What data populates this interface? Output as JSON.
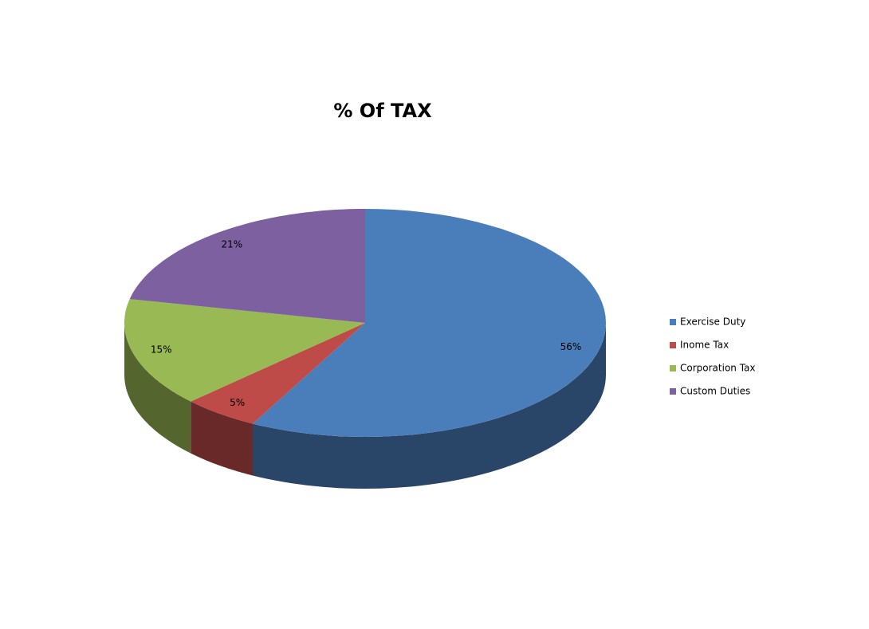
{
  "chart_data": {
    "type": "pie",
    "title": "% Of TAX",
    "categories": [
      "Exercise Duty",
      "Inome Tax",
      "Corporation Tax",
      "Custom Duties"
    ],
    "values": [
      56,
      5,
      15,
      21
    ],
    "value_labels": [
      "56%",
      "5%",
      "15%",
      "21%"
    ],
    "colors": [
      "#4a7ebb",
      "#be4b48",
      "#98b954",
      "#7d60a0"
    ],
    "legend": "right"
  }
}
